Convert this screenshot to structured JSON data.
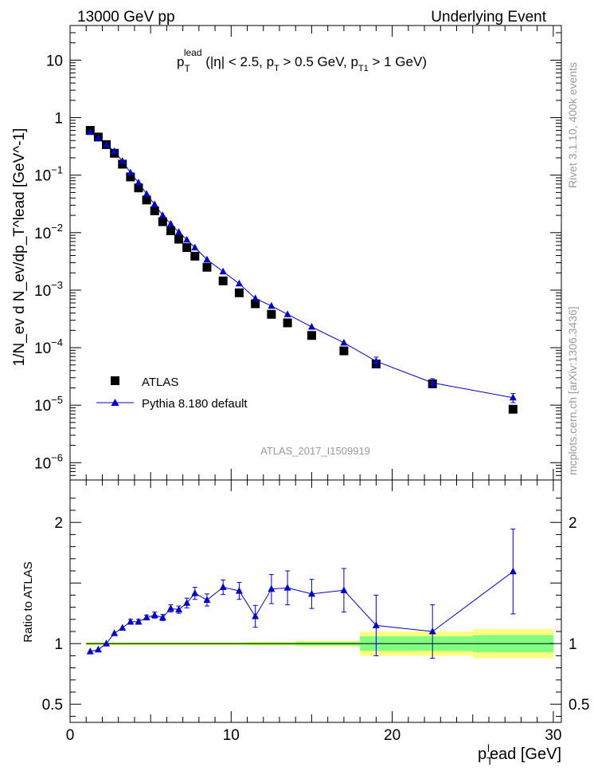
{
  "header": {
    "left": "13000 GeV pp",
    "right": "Underlying Event"
  },
  "side_labels": {
    "rivet": "Rivet 3.1.10,  400k events",
    "mcplots": "mcplots.cern.ch [arXiv:1306.3436]"
  },
  "colors": {
    "atlas": "#000000",
    "pythia": "#0000cc",
    "band_yellow": "#ffff80",
    "band_green": "#80ff80",
    "watermark": "#999999"
  },
  "chart_data": [
    {
      "type": "scatter",
      "scale": "log",
      "title": {
        "main": "p",
        "sup": "lead",
        "sub": "T",
        "cuts_prefix": " (|η| < 2.5, p",
        "cuts_sub1": "T",
        "cuts_mid": " > 0.5 GeV, p",
        "cuts_sub2": "T1",
        "cuts_suffix": " > 1 GeV)"
      },
      "ylabel": "1/N_ev d N_ev/dp_T^lead [GeV^-1]",
      "ylim": [
        5e-07,
        40
      ],
      "xlim": [
        0,
        30.5
      ],
      "watermark": "ATLAS_2017_I1509919",
      "ytick_labels": [
        {
          "value": 10,
          "base": "10",
          "exp": ""
        },
        {
          "value": 1,
          "base": "1",
          "exp": ""
        },
        {
          "value": 0.1,
          "base": "10",
          "exp": "−1"
        },
        {
          "value": 0.01,
          "base": "10",
          "exp": "−2"
        },
        {
          "value": 0.001,
          "base": "10",
          "exp": "−3"
        },
        {
          "value": 0.0001,
          "base": "10",
          "exp": "−4"
        },
        {
          "value": 1e-05,
          "base": "10",
          "exp": "−5"
        },
        {
          "value": 1e-06,
          "base": "10",
          "exp": "−6"
        }
      ],
      "legend": {
        "atlas": "ATLAS",
        "pythia": "Pythia 8.180 default",
        "position": "bottom-left"
      },
      "series": [
        {
          "name": "ATLAS",
          "marker": "square",
          "x": [
            1.25,
            1.75,
            2.25,
            2.75,
            3.25,
            3.75,
            4.25,
            4.75,
            5.25,
            5.75,
            6.25,
            6.75,
            7.25,
            7.75,
            8.5,
            9.5,
            10.5,
            11.5,
            12.5,
            13.5,
            15.0,
            17.0,
            19.0,
            22.5,
            27.5
          ],
          "y": [
            0.6,
            0.46,
            0.34,
            0.24,
            0.155,
            0.093,
            0.06,
            0.037,
            0.024,
            0.0155,
            0.0108,
            0.0077,
            0.0055,
            0.0039,
            0.0025,
            0.00145,
            0.0009,
            0.00058,
            0.00038,
            0.00027,
            0.000163,
            8.8e-05,
            5.2e-05,
            2.35e-05,
            8.5e-06
          ]
        },
        {
          "name": "Pythia 8.180 default",
          "marker": "triangle",
          "x": [
            1.25,
            1.75,
            2.25,
            2.75,
            3.25,
            3.75,
            4.25,
            4.75,
            5.25,
            5.75,
            6.25,
            6.75,
            7.25,
            7.75,
            8.5,
            9.5,
            10.5,
            11.5,
            12.5,
            13.5,
            15.0,
            17.0,
            19.0,
            22.5,
            27.5
          ],
          "y": [
            0.56,
            0.44,
            0.34,
            0.26,
            0.175,
            0.11,
            0.074,
            0.047,
            0.031,
            0.02,
            0.0142,
            0.0102,
            0.0075,
            0.0055,
            0.0034,
            0.0021,
            0.0013,
            0.00072,
            0.00053,
            0.00038,
            0.00023,
            0.000122,
            5.8e-05,
            2.45e-05,
            1.35e-05
          ]
        }
      ]
    },
    {
      "type": "line",
      "ylabel": "Ratio to ATLAS",
      "xlabel": "p_T^lead [GeV]",
      "xlim": [
        0,
        30.5
      ],
      "ylim": [
        0.35,
        2.35
      ],
      "xtick_labels": [
        "0",
        "10",
        "20",
        "30"
      ],
      "ytick_labels": [
        "0.5",
        "1",
        "2"
      ],
      "bands": [
        {
          "x0": 1.0,
          "x1": 11.0,
          "yellow": [
            0.985,
            1.015
          ],
          "green": [
            0.992,
            1.008
          ]
        },
        {
          "x0": 11.0,
          "x1": 14.0,
          "yellow": [
            0.982,
            1.018
          ],
          "green": [
            0.99,
            1.01
          ]
        },
        {
          "x0": 14.0,
          "x1": 18.0,
          "yellow": [
            0.975,
            1.025
          ],
          "green": [
            0.985,
            1.015
          ]
        },
        {
          "x0": 18.0,
          "x1": 25.0,
          "yellow": [
            0.9,
            1.1
          ],
          "green": [
            0.94,
            1.06
          ]
        },
        {
          "x0": 25.0,
          "x1": 30.0,
          "yellow": [
            0.88,
            1.12
          ],
          "green": [
            0.93,
            1.07
          ]
        }
      ],
      "series": [
        {
          "name": "Pythia 8.180 default / ATLAS",
          "x": [
            1.25,
            1.75,
            2.25,
            2.75,
            3.25,
            3.75,
            4.25,
            4.75,
            5.25,
            5.75,
            6.25,
            6.75,
            7.25,
            7.75,
            8.5,
            9.5,
            10.5,
            11.5,
            12.5,
            13.5,
            15.0,
            17.0,
            19.0,
            22.5,
            27.5
          ],
          "y": [
            0.935,
            0.95,
            1.0,
            1.085,
            1.13,
            1.18,
            1.18,
            1.215,
            1.235,
            1.215,
            1.29,
            1.28,
            1.335,
            1.415,
            1.36,
            1.465,
            1.435,
            1.225,
            1.45,
            1.46,
            1.41,
            1.44,
            1.15,
            1.1,
            1.595
          ],
          "err": [
            0.01,
            0.01,
            0.012,
            0.015,
            0.015,
            0.02,
            0.02,
            0.02,
            0.025,
            0.025,
            0.03,
            0.03,
            0.04,
            0.05,
            0.05,
            0.06,
            0.07,
            0.09,
            0.12,
            0.14,
            0.12,
            0.18,
            0.25,
            0.22,
            0.35
          ]
        }
      ]
    }
  ]
}
